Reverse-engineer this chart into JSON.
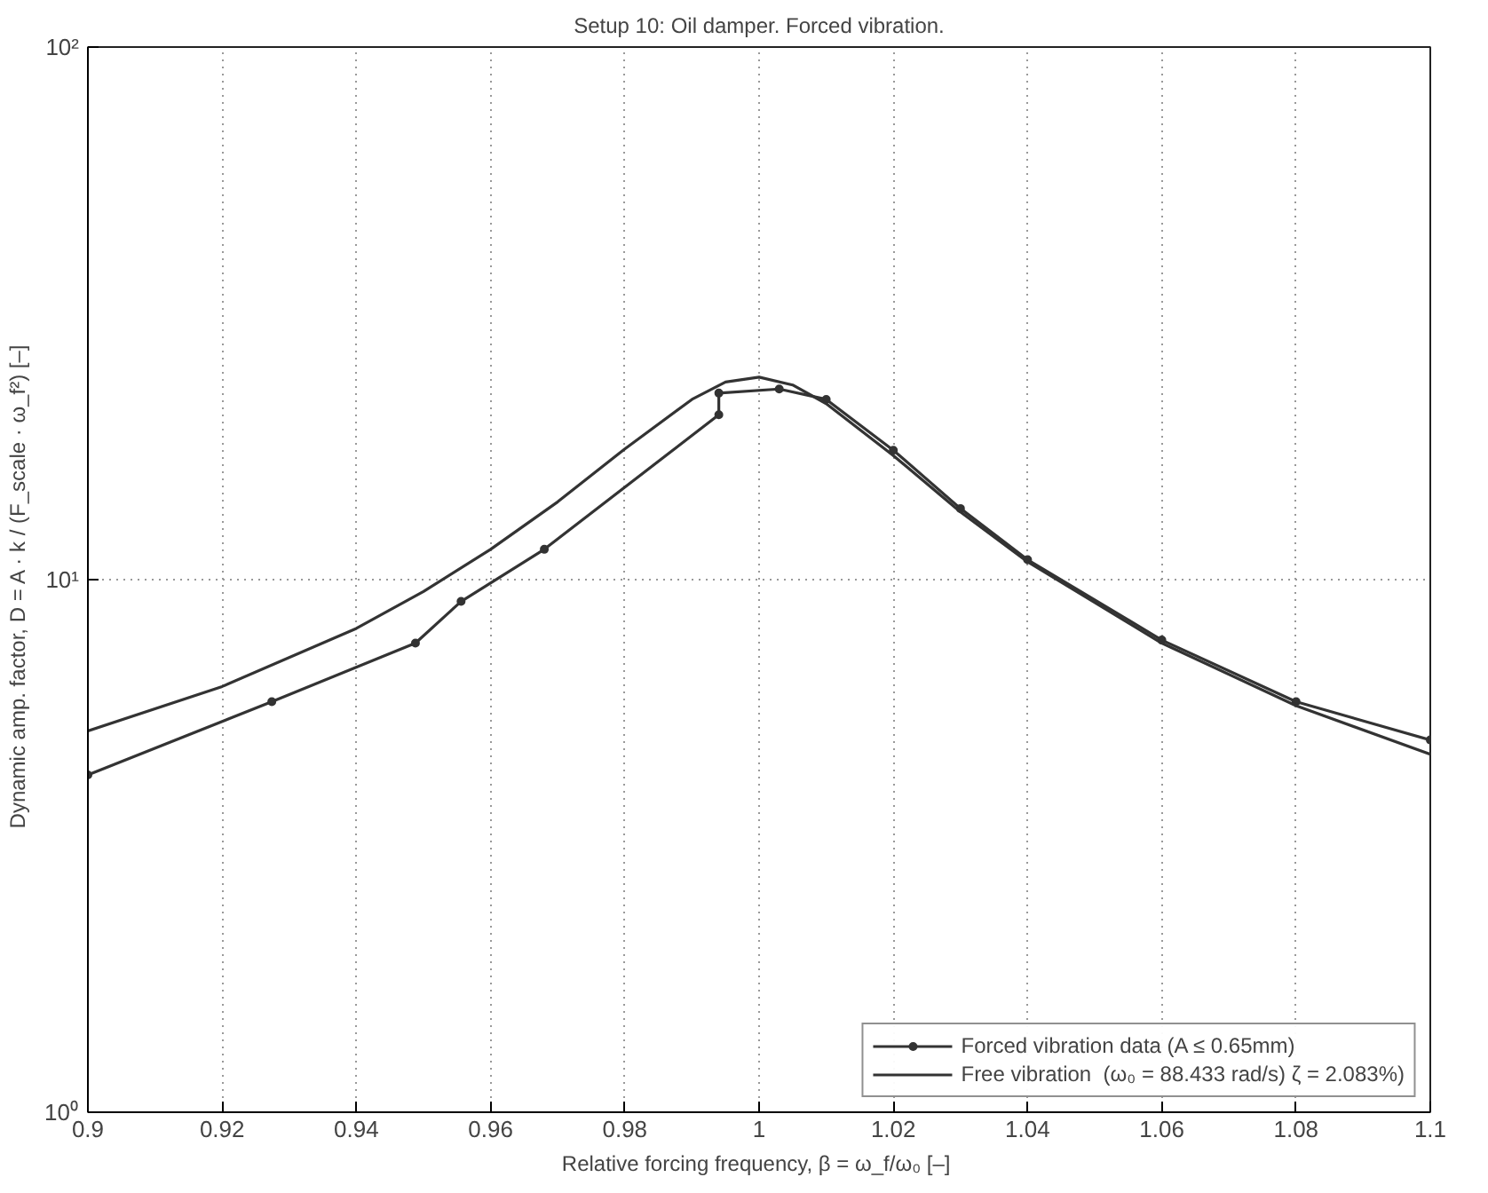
{
  "chart_data": {
    "type": "line",
    "title": "Setup 10: Oil damper. Forced vibration.",
    "xlabel": "Relative forcing frequency, β = ω_f/ω₀  [–]",
    "ylabel": "Dynamic amp. factor,  D = A · k / (F_scale · ω_f²)  [–]",
    "log": "y",
    "grid": true,
    "legend": "bottom right",
    "xlim": [
      0.9,
      1.1
    ],
    "xticks": [
      0.9,
      0.92,
      0.94,
      0.96,
      0.98,
      1,
      1.02,
      1.04,
      1.06,
      1.08,
      {
        "value": 1.1,
        "label": "1.1"
      }
    ],
    "ylim": [
      1,
      100
    ],
    "yticks": [
      {
        "value": 1,
        "label": "10⁰"
      },
      {
        "value": 10,
        "label": "10¹"
      },
      {
        "value": 100,
        "label": "10²"
      }
    ],
    "series": [
      {
        "name": "Forced vibration data (A ≤ 0.65mm)",
        "color": "#333333",
        "marker": "circle",
        "x": [
          0.9,
          0.9274,
          0.9488,
          0.9556,
          0.968,
          0.994,
          0.994,
          1.003,
          1.01,
          1.02,
          1.03,
          1.04,
          1.06,
          1.08,
          1.1
        ],
        "values": [
          4.3,
          5.9,
          7.6,
          9.1,
          11.4,
          20.4,
          22.4,
          22.8,
          21.8,
          17.5,
          13.6,
          10.9,
          7.7,
          5.9,
          5.0
        ]
      },
      {
        "name": "Free vibration  (ω₀ = 88.433 rad/s) ζ = 2.083%)",
        "color": "#333333",
        "marker": "none",
        "x": [
          0.9,
          0.92,
          0.94,
          0.95,
          0.96,
          0.97,
          0.98,
          0.99,
          0.995,
          1.0,
          1.005,
          1.01,
          1.02,
          1.03,
          1.04,
          1.06,
          1.08,
          1.1
        ],
        "values": [
          5.2,
          6.3,
          8.1,
          9.5,
          11.4,
          14.0,
          17.6,
          21.8,
          23.5,
          24.0,
          23.2,
          21.4,
          17.1,
          13.4,
          10.8,
          7.6,
          5.8,
          4.7
        ]
      }
    ]
  }
}
